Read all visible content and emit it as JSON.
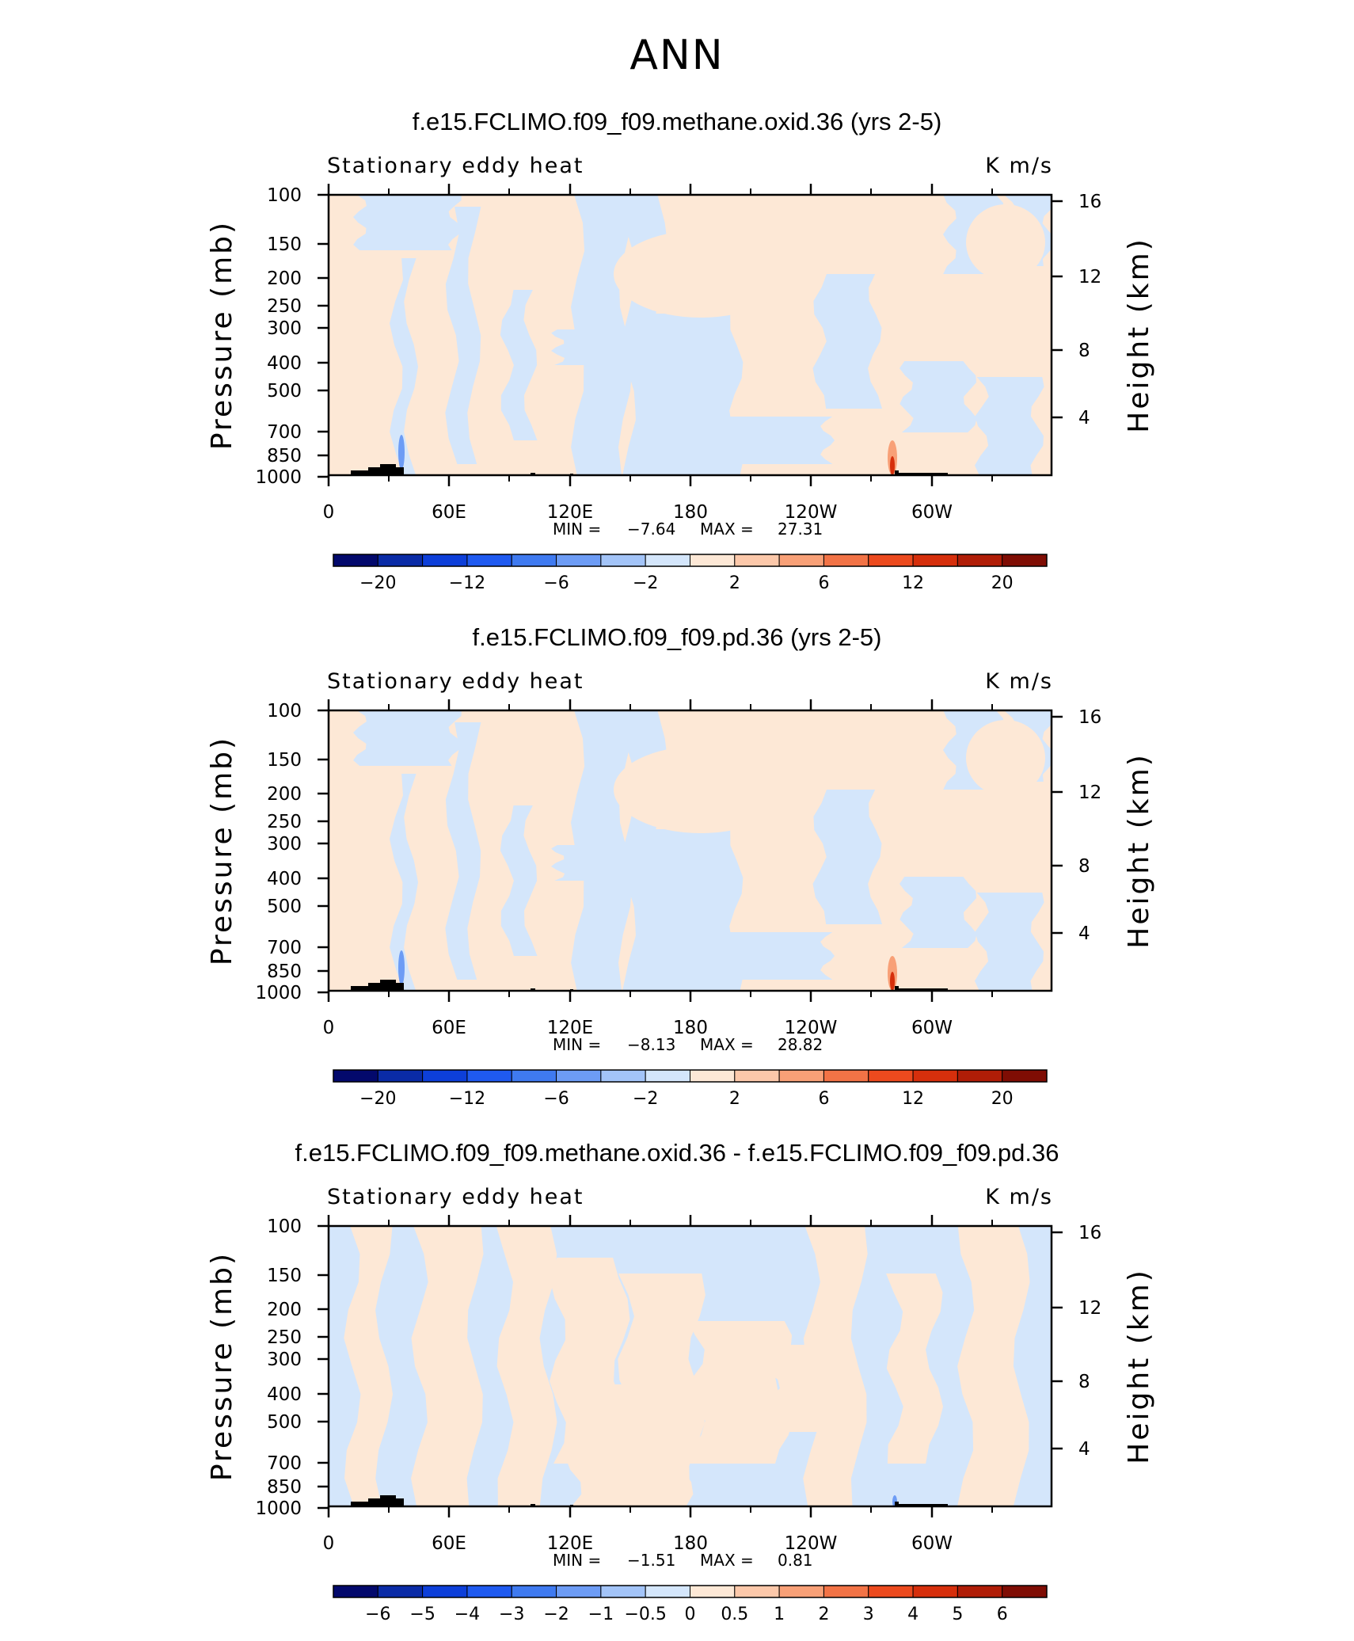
{
  "title": "ANN",
  "chart_data": [
    {
      "type": "heatmap",
      "title": "f.e15.FCLIMO.f09_f09.methane.oxid.36 (yrs 2-5)",
      "left_label": "Stationary eddy heat",
      "right_label": "K m/s",
      "ylabel": "Pressure (mb)",
      "ylabel_right": "Height (km)",
      "x_ticks": [
        "0",
        "60E",
        "120E",
        "180",
        "120W",
        "60W"
      ],
      "y_ticks": [
        "100",
        "150",
        "200",
        "250",
        "300",
        "400",
        "500",
        "700",
        "850",
        "1000"
      ],
      "y_right_ticks": [
        "16",
        "12",
        "8",
        "4"
      ],
      "stats": {
        "min_label": "MIN =",
        "min": "−7.64",
        "max_label": "MAX =",
        "max": "27.31"
      },
      "colorbar_labels": [
        "−20",
        "−12",
        "−6",
        "−2",
        "2",
        "6",
        "12",
        "20"
      ],
      "colorbar_colors": [
        "#03096c",
        "#0a2ba6",
        "#0d3fd9",
        "#1f5af0",
        "#3f7af0",
        "#6d9cf5",
        "#a3c4f8",
        "#d4e6fb",
        "#fde8d6",
        "#fcc8aa",
        "#f8a077",
        "#f27346",
        "#ec4a1e",
        "#d62f0c",
        "#b01d07",
        "#7f0d04"
      ],
      "field_min": -7.64,
      "field_max": 27.31
    },
    {
      "type": "heatmap",
      "title": "f.e15.FCLIMO.f09_f09.pd.36 (yrs 2-5)",
      "left_label": "Stationary eddy heat",
      "right_label": "K m/s",
      "ylabel": "Pressure (mb)",
      "ylabel_right": "Height (km)",
      "x_ticks": [
        "0",
        "60E",
        "120E",
        "180",
        "120W",
        "60W"
      ],
      "y_ticks": [
        "100",
        "150",
        "200",
        "250",
        "300",
        "400",
        "500",
        "700",
        "850",
        "1000"
      ],
      "y_right_ticks": [
        "16",
        "12",
        "8",
        "4"
      ],
      "stats": {
        "min_label": "MIN =",
        "min": "−8.13",
        "max_label": "MAX =",
        "max": "28.82"
      },
      "colorbar_labels": [
        "−20",
        "−12",
        "−6",
        "−2",
        "2",
        "6",
        "12",
        "20"
      ],
      "colorbar_colors": [
        "#03096c",
        "#0a2ba6",
        "#0d3fd9",
        "#1f5af0",
        "#3f7af0",
        "#6d9cf5",
        "#a3c4f8",
        "#d4e6fb",
        "#fde8d6",
        "#fcc8aa",
        "#f8a077",
        "#f27346",
        "#ec4a1e",
        "#d62f0c",
        "#b01d07",
        "#7f0d04"
      ],
      "field_min": -8.13,
      "field_max": 28.82
    },
    {
      "type": "heatmap",
      "title": "f.e15.FCLIMO.f09_f09.methane.oxid.36 - f.e15.FCLIMO.f09_f09.pd.36",
      "left_label": "Stationary eddy heat",
      "right_label": "K m/s",
      "ylabel": "Pressure (mb)",
      "ylabel_right": "Height (km)",
      "x_ticks": [
        "0",
        "60E",
        "120E",
        "180",
        "120W",
        "60W"
      ],
      "y_ticks": [
        "100",
        "150",
        "200",
        "250",
        "300",
        "400",
        "500",
        "700",
        "850",
        "1000"
      ],
      "y_right_ticks": [
        "16",
        "12",
        "8",
        "4"
      ],
      "stats": {
        "min_label": "MIN =",
        "min": "−1.51",
        "max_label": "MAX =",
        "max": "0.81"
      },
      "colorbar_labels": [
        "−6",
        "−5",
        "−4",
        "−3",
        "−2",
        "−1",
        "−0.5",
        "0",
        "0.5",
        "1",
        "2",
        "3",
        "4",
        "5",
        "6"
      ],
      "colorbar_colors": [
        "#03096c",
        "#0a2ba6",
        "#0d3fd9",
        "#1f5af0",
        "#3f7af0",
        "#6d9cf5",
        "#a3c4f8",
        "#d4e6fb",
        "#fde8d6",
        "#fcc8aa",
        "#f8a077",
        "#f27346",
        "#ec4a1e",
        "#d62f0c",
        "#b01d07",
        "#7f0d04"
      ],
      "field_min": -1.51,
      "field_max": 0.81
    }
  ]
}
